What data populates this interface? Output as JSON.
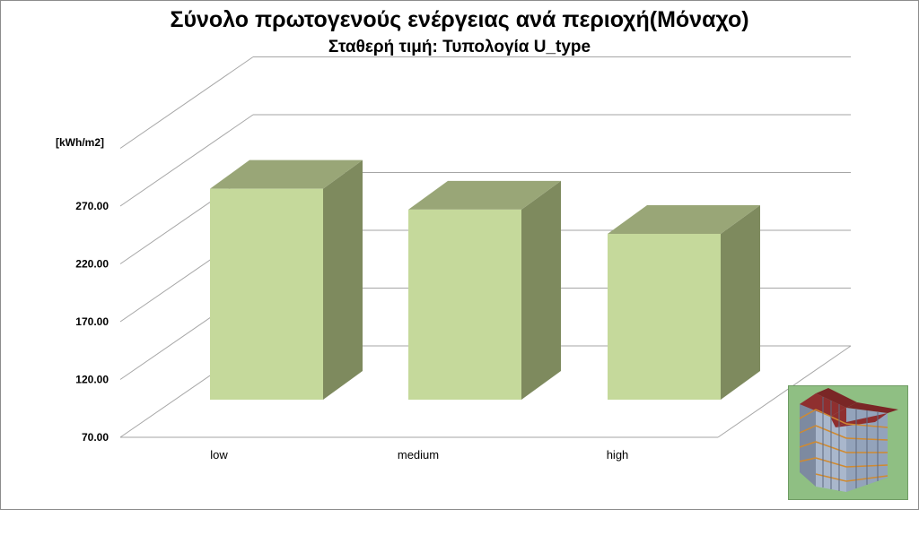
{
  "chart_data": {
    "type": "bar",
    "title": "Σύνολο πρωτογενούς ενέργειας ανά περιοχή(Μόναχο)",
    "subtitle": "Σταθερή τιμή: Τυπολογία U_type",
    "ylabel": "[kWh/m2]",
    "categories": [
      "low",
      "medium",
      "high"
    ],
    "values": [
      285,
      267,
      246
    ],
    "ylim": [
      70,
      320
    ],
    "yticks": [
      "70.00",
      "120.00",
      "170.00",
      "220.00",
      "270.00"
    ],
    "ytick_values": [
      70,
      120,
      170,
      220,
      270
    ],
    "grid": true,
    "legend": "none",
    "colors": {
      "bar_front": "#c5d99b",
      "bar_side": "#7e8a5e",
      "bar_top": "#99a677",
      "grid": "#a6a6a6"
    }
  },
  "thumbnail": {
    "icon": "building-3d-model-icon"
  }
}
